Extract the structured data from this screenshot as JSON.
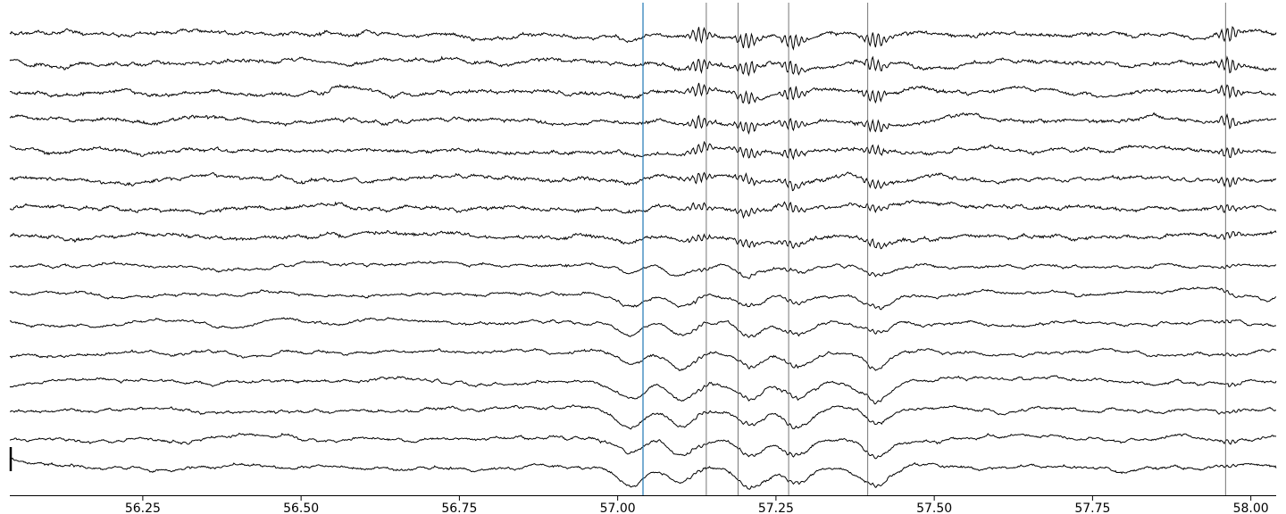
{
  "chart_data": {
    "type": "line",
    "title": "",
    "xlabel": "",
    "ylabel": "",
    "xlim": [
      56.04,
      58.04
    ],
    "x_ticks": [
      "56.25",
      "56.50",
      "56.75",
      "57.00",
      "57.25",
      "57.50",
      "57.75",
      "58.00"
    ],
    "x_tick_values": [
      56.25,
      56.5,
      56.75,
      57.0,
      57.25,
      57.5,
      57.75,
      58.0
    ],
    "n_channels": 16,
    "grid": false,
    "legend": "none",
    "event_markers": [
      {
        "x": 57.04,
        "color": "#1f77b4"
      },
      {
        "x": 57.14,
        "color": "#555555"
      },
      {
        "x": 57.19,
        "color": "#555555"
      },
      {
        "x": 57.27,
        "color": "#555555"
      },
      {
        "x": 57.395,
        "color": "#555555"
      },
      {
        "x": 57.96,
        "color": "#555555"
      }
    ],
    "waveform_features": {
      "burst_times": [
        57.13,
        57.205,
        57.275,
        57.405,
        57.965
      ],
      "negative_deflection_times": [
        57.02,
        57.1,
        57.21,
        57.285,
        57.41
      ],
      "upper_channels_with_bursts": 8
    },
    "colors": {
      "trace": "#000000",
      "event_first": "#1f77b4",
      "event_other": "#555555",
      "axis": "#000000"
    }
  }
}
